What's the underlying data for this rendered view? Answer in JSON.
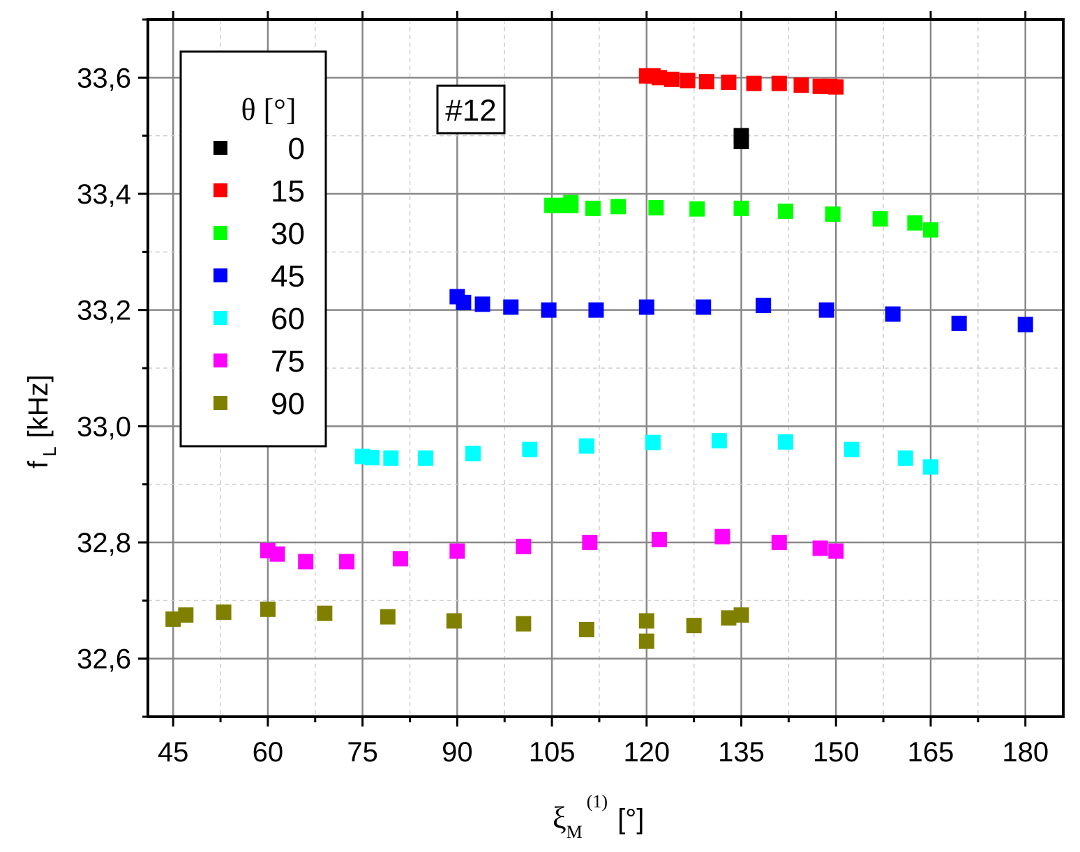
{
  "chart_data": {
    "type": "scatter",
    "annotation": "#12",
    "xlabel": {
      "symbol": "ξ",
      "subscript": "M",
      "superscript": "(1)",
      "unit": "[°]"
    },
    "ylabel": {
      "symbol": "f",
      "subscript": "L",
      "unit": "[kHz]"
    },
    "xlim": [
      41,
      186
    ],
    "ylim": [
      32.5,
      33.7
    ],
    "x_ticks": [
      45,
      60,
      75,
      90,
      105,
      120,
      135,
      150,
      165,
      180
    ],
    "x_tick_labels": [
      "45",
      "60",
      "75",
      "90",
      "105",
      "120",
      "135",
      "150",
      "165",
      "180"
    ],
    "y_ticks": [
      32.6,
      32.8,
      33.0,
      33.2,
      33.4,
      33.6
    ],
    "y_tick_labels": [
      "32,6",
      "32,8",
      "33,0",
      "33,2",
      "33,4",
      "33,6"
    ],
    "grid": true,
    "legend": {
      "title": "θ [°]",
      "placement": "top-left"
    },
    "series": [
      {
        "name": "0",
        "color": "#000000",
        "points": [
          [
            135,
            33.5
          ],
          [
            135,
            33.49
          ]
        ]
      },
      {
        "name": "15",
        "color": "#ff0000",
        "points": [
          [
            120,
            33.603
          ],
          [
            121,
            33.603
          ],
          [
            122,
            33.6
          ],
          [
            124,
            33.597
          ],
          [
            126.5,
            33.595
          ],
          [
            129.5,
            33.593
          ],
          [
            133,
            33.592
          ],
          [
            137,
            33.59
          ],
          [
            141,
            33.59
          ],
          [
            144.5,
            33.587
          ],
          [
            147.5,
            33.585
          ],
          [
            149,
            33.585
          ],
          [
            150,
            33.584
          ]
        ]
      },
      {
        "name": "30",
        "color": "#00ff00",
        "points": [
          [
            105,
            33.38
          ],
          [
            106.5,
            33.38
          ],
          [
            108,
            33.38
          ],
          [
            108,
            33.385
          ],
          [
            111.5,
            33.375
          ],
          [
            115.5,
            33.378
          ],
          [
            121.5,
            33.376
          ],
          [
            128,
            33.374
          ],
          [
            135,
            33.375
          ],
          [
            142,
            33.37
          ],
          [
            149.5,
            33.365
          ],
          [
            157,
            33.357
          ],
          [
            162.5,
            33.35
          ],
          [
            165,
            33.338
          ]
        ]
      },
      {
        "name": "45",
        "color": "#0000ff",
        "points": [
          [
            90,
            33.223
          ],
          [
            91,
            33.213
          ],
          [
            94,
            33.21
          ],
          [
            98.5,
            33.205
          ],
          [
            104.5,
            33.2
          ],
          [
            112,
            33.2
          ],
          [
            120,
            33.205
          ],
          [
            129,
            33.205
          ],
          [
            138.5,
            33.208
          ],
          [
            148.5,
            33.2
          ],
          [
            159,
            33.193
          ],
          [
            169.5,
            33.177
          ],
          [
            180,
            33.175
          ]
        ]
      },
      {
        "name": "60",
        "color": "#00ffff",
        "points": [
          [
            75,
            32.948
          ],
          [
            76.5,
            32.946
          ],
          [
            79.5,
            32.945
          ],
          [
            85,
            32.945
          ],
          [
            92.5,
            32.953
          ],
          [
            101.5,
            32.96
          ],
          [
            110.5,
            32.966
          ],
          [
            121,
            32.972
          ],
          [
            131.5,
            32.975
          ],
          [
            142,
            32.973
          ],
          [
            152.5,
            32.96
          ],
          [
            161,
            32.945
          ],
          [
            165,
            32.93
          ]
        ]
      },
      {
        "name": "75",
        "color": "#ff00ff",
        "points": [
          [
            60,
            32.786
          ],
          [
            61.5,
            32.78
          ],
          [
            66,
            32.767
          ],
          [
            72.5,
            32.767
          ],
          [
            81,
            32.772
          ],
          [
            90,
            32.785
          ],
          [
            100.5,
            32.793
          ],
          [
            111,
            32.8
          ],
          [
            122,
            32.805
          ],
          [
            132,
            32.81
          ],
          [
            141,
            32.8
          ],
          [
            147.5,
            32.79
          ],
          [
            150,
            32.785
          ]
        ]
      },
      {
        "name": "90",
        "color": "#808000",
        "points": [
          [
            45,
            32.668
          ],
          [
            47,
            32.675
          ],
          [
            53,
            32.68
          ],
          [
            60,
            32.685
          ],
          [
            69,
            32.678
          ],
          [
            79,
            32.672
          ],
          [
            89.5,
            32.665
          ],
          [
            100.5,
            32.66
          ],
          [
            110.5,
            32.65
          ],
          [
            120,
            32.665
          ],
          [
            120,
            32.63
          ],
          [
            127.5,
            32.657
          ],
          [
            133,
            32.67
          ],
          [
            135,
            32.675
          ]
        ]
      }
    ]
  }
}
